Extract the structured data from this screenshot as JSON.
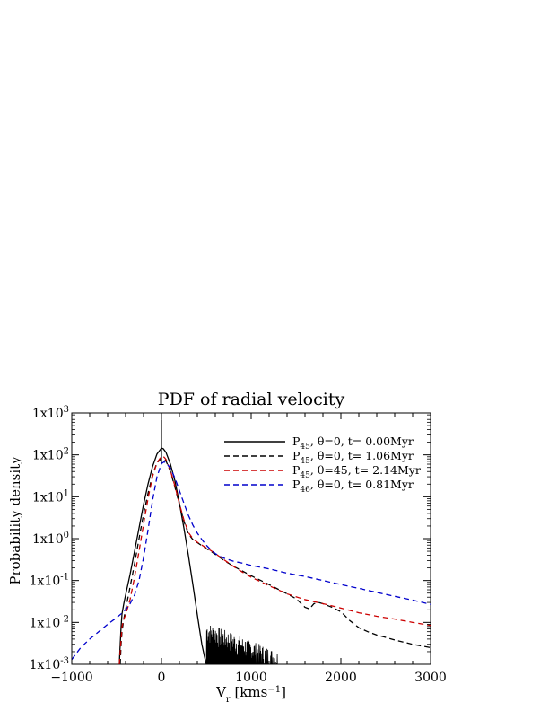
{
  "chart_data": {
    "type": "line",
    "title": "PDF of radial velocity",
    "xlabel": "V",
    "xlabel_sub": "r",
    "xlabel_unit": " [kms",
    "xlabel_unit_sup": "−1",
    "xlabel_unit_close": "]",
    "ylabel": "Probability density",
    "xlim": [
      -1000,
      3000
    ],
    "ylim": [
      0.001,
      1000
    ],
    "yscale": "log",
    "grid": false,
    "legend_position": "top-right",
    "x_ticks": [
      {
        "value": -1000,
        "label": "−1000"
      },
      {
        "value": 0,
        "label": "0"
      },
      {
        "value": 1000,
        "label": "1000"
      },
      {
        "value": 2000,
        "label": "2000"
      },
      {
        "value": 3000,
        "label": "3000"
      }
    ],
    "y_ticks": [
      {
        "value": 0.001,
        "base": "1x10",
        "exp": "-3"
      },
      {
        "value": 0.01,
        "base": "1x10",
        "exp": "-2"
      },
      {
        "value": 0.1,
        "base": "1x10",
        "exp": "-1"
      },
      {
        "value": 1,
        "base": "1x10",
        "exp": "0"
      },
      {
        "value": 10,
        "base": "1x10",
        "exp": "1"
      },
      {
        "value": 100,
        "base": "1x10",
        "exp": "2"
      },
      {
        "value": 1000,
        "base": "1x10",
        "exp": "3"
      }
    ],
    "series": [
      {
        "id": "s1",
        "label_main": "P",
        "label_sub": "45",
        "label_rest": ", θ=0, t= 0.00Myr",
        "color": "#000000",
        "dash": "solid",
        "x": [
          -470,
          -460,
          -450,
          -440,
          -420,
          -400,
          -350,
          -300,
          -250,
          -200,
          -150,
          -100,
          -50,
          0,
          20,
          50,
          100,
          150,
          200,
          250,
          300,
          350,
          400,
          450,
          480,
          500
        ],
        "y": [
          0.001,
          0.003,
          0.008,
          0.016,
          0.028,
          0.045,
          0.14,
          0.5,
          1.8,
          6.5,
          20,
          52,
          105,
          145,
          140,
          115,
          60,
          24,
          7,
          1.8,
          0.4,
          0.08,
          0.015,
          0.003,
          0.0015,
          0.001
        ],
        "noise_tail": {
          "x_start": 500,
          "x_end": 1300,
          "y_start": 0.01,
          "y_end": 0.002
        }
      },
      {
        "id": "s2",
        "label_main": "P",
        "label_sub": "45",
        "label_rest": ", θ=0, t= 1.06Myr",
        "color": "#000000",
        "dash": "6 4",
        "x": [
          -460,
          -450,
          -440,
          -420,
          -400,
          -350,
          -300,
          -250,
          -200,
          -150,
          -100,
          -50,
          0,
          30,
          50,
          100,
          150,
          200,
          250,
          300,
          350,
          400,
          450,
          500,
          550,
          600,
          700,
          800,
          900,
          1000,
          1200,
          1400,
          1500,
          1600,
          1650,
          1700,
          1750,
          1800,
          1900,
          2000,
          2100,
          2200,
          2300,
          2400,
          2500,
          2600,
          2800,
          3000
        ],
        "y": [
          0.001,
          0.003,
          0.006,
          0.012,
          0.02,
          0.07,
          0.25,
          1.0,
          3.8,
          12,
          33,
          65,
          82,
          80,
          72,
          40,
          17,
          6.5,
          2.6,
          1.3,
          0.95,
          0.8,
          0.68,
          0.58,
          0.5,
          0.42,
          0.3,
          0.22,
          0.17,
          0.13,
          0.08,
          0.048,
          0.037,
          0.023,
          0.021,
          0.028,
          0.03,
          0.028,
          0.023,
          0.018,
          0.011,
          0.0075,
          0.006,
          0.005,
          0.0044,
          0.0038,
          0.003,
          0.0025
        ]
      },
      {
        "id": "s3",
        "label_main": "P",
        "label_sub": "45",
        "label_rest": ", θ=45, t= 2.14Myr",
        "color": "#cc0000",
        "dash": "6 4",
        "x": [
          -470,
          -460,
          -450,
          -440,
          -420,
          -400,
          -350,
          -300,
          -250,
          -200,
          -150,
          -100,
          -50,
          0,
          30,
          50,
          100,
          150,
          200,
          250,
          300,
          350,
          400,
          450,
          500,
          550,
          600,
          700,
          800,
          900,
          1000,
          1200,
          1400,
          1600,
          1800,
          2000,
          2200,
          2400,
          2600,
          2800,
          3000
        ],
        "y": [
          0.001,
          0.002,
          0.004,
          0.008,
          0.012,
          0.015,
          0.035,
          0.12,
          0.5,
          2.2,
          9,
          30,
          65,
          92,
          88,
          78,
          42,
          18,
          6.8,
          2.8,
          1.4,
          1.0,
          0.82,
          0.7,
          0.6,
          0.52,
          0.44,
          0.31,
          0.22,
          0.16,
          0.12,
          0.075,
          0.048,
          0.035,
          0.028,
          0.022,
          0.017,
          0.014,
          0.012,
          0.01,
          0.0085
        ]
      },
      {
        "id": "s4",
        "label_main": "P",
        "label_sub": "46",
        "label_rest": ", θ=0, t= 0.81Myr",
        "color": "#0000cc",
        "dash": "6 4",
        "x": [
          -1000,
          -900,
          -800,
          -700,
          -600,
          -500,
          -450,
          -400,
          -350,
          -300,
          -250,
          -200,
          -150,
          -100,
          -50,
          0,
          30,
          50,
          100,
          150,
          200,
          250,
          300,
          350,
          400,
          450,
          500,
          550,
          600,
          650,
          700,
          800,
          900,
          1000,
          1200,
          1400,
          1600,
          1800,
          2000,
          2200,
          2400,
          2600,
          2800,
          3000
        ],
        "y": [
          0.0013,
          0.0025,
          0.004,
          0.006,
          0.009,
          0.013,
          0.016,
          0.02,
          0.028,
          0.045,
          0.1,
          0.35,
          1.6,
          8,
          30,
          62,
          68,
          65,
          48,
          28,
          14,
          7,
          3.6,
          2.1,
          1.35,
          0.95,
          0.7,
          0.54,
          0.44,
          0.38,
          0.34,
          0.29,
          0.26,
          0.23,
          0.19,
          0.15,
          0.125,
          0.1,
          0.08,
          0.065,
          0.052,
          0.042,
          0.034,
          0.027
        ]
      }
    ]
  }
}
